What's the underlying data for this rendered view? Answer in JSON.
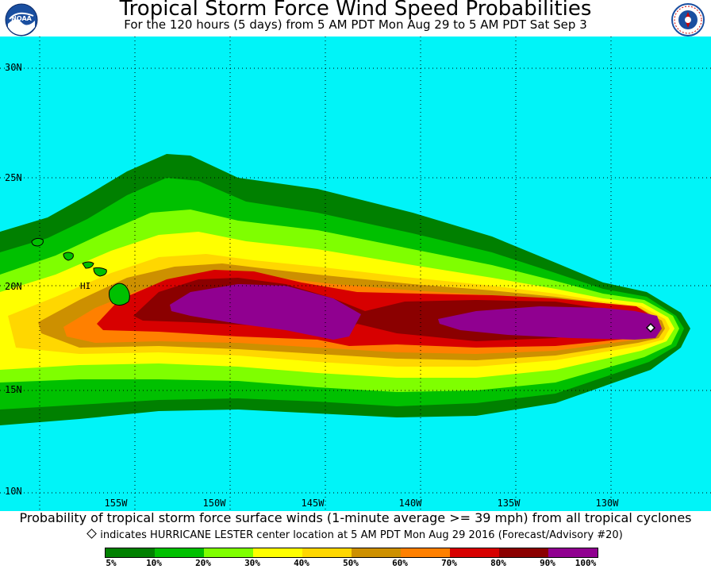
{
  "header": {
    "title": "Tropical Storm Force Wind Speed Probabilities",
    "subtitle": "For the 120 hours (5 days) from 5 AM PDT Mon Aug 29 to 5 AM PDT Sat Sep 3",
    "left_logo": "NOAA",
    "right_logo": "NATIONAL WEATHER SERVICE",
    "right_logo_icon": "nws-logo-icon"
  },
  "map": {
    "ocean_color": "#00f4f8",
    "latitude_labels": [
      "30N",
      "25N",
      "20N",
      "15N",
      "10N"
    ],
    "longitude_labels": [
      "155W",
      "150W",
      "145W",
      "140W",
      "135W",
      "130W"
    ],
    "place_label": "HI"
  },
  "footer": {
    "caption": "Probability of tropical storm force surface winds (1-minute average >= 39 mph) from all tropical cyclones",
    "indicator_text": "indicates HURRICANE LESTER center location at 5 AM PDT Mon Aug 29 2016 (Forecast/Advisory #20)",
    "legend": [
      {
        "label": "5%",
        "color": "#008000"
      },
      {
        "label": "10%",
        "color": "#00c000"
      },
      {
        "label": "20%",
        "color": "#7fff00"
      },
      {
        "label": "30%",
        "color": "#ffff00"
      },
      {
        "label": "40%",
        "color": "#ffd700"
      },
      {
        "label": "50%",
        "color": "#cd9000"
      },
      {
        "label": "60%",
        "color": "#ff8000"
      },
      {
        "label": "70%",
        "color": "#d70000"
      },
      {
        "label": "80%",
        "color": "#8b0000"
      },
      {
        "label": "90%",
        "color": "#900090"
      },
      {
        "label": "100%",
        "color": ""
      }
    ]
  }
}
